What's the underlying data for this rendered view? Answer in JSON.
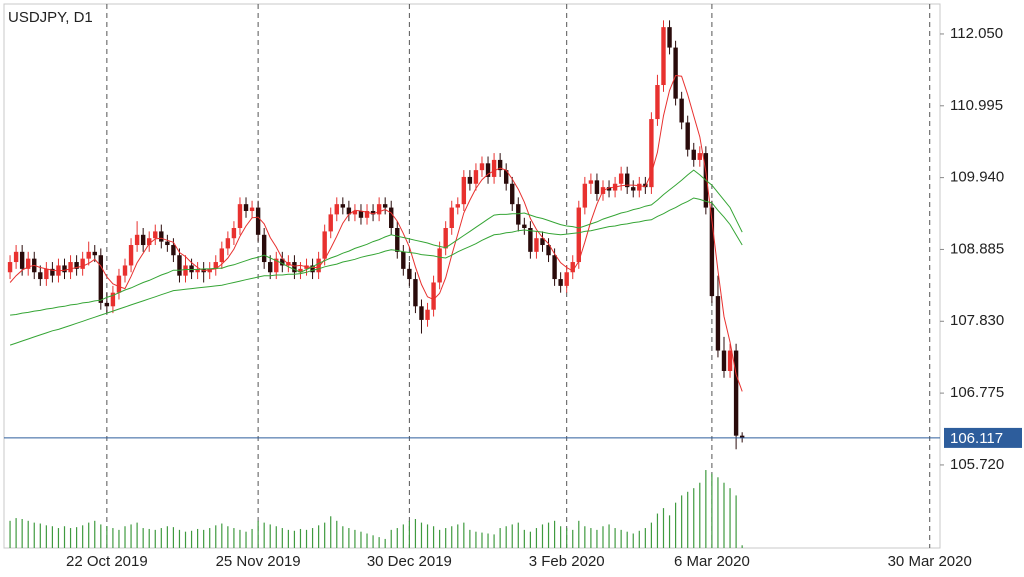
{
  "chart_data": {
    "type": "candlestick",
    "title": "USDJPY, D1",
    "open": [
      108.55,
      108.7,
      108.85,
      108.6,
      108.75,
      108.55,
      108.45,
      108.6,
      108.5,
      108.65,
      108.55,
      108.7,
      108.6,
      108.75,
      108.85,
      108.8,
      108.1,
      108.05,
      108.25,
      108.5,
      108.65,
      108.95,
      109.1,
      108.95,
      109.05,
      109.15,
      109.0,
      108.95,
      108.8,
      108.5,
      108.65,
      108.55,
      108.6,
      108.55,
      108.6,
      108.7,
      108.9,
      109.05,
      109.2,
      109.55,
      109.45,
      109.5,
      109.1,
      108.7,
      108.55,
      108.75,
      108.65,
      108.7,
      108.55,
      108.6,
      108.65,
      108.55,
      108.75,
      109.15,
      109.4,
      109.55,
      109.5,
      109.4,
      109.45,
      109.35,
      109.45,
      109.4,
      109.55,
      109.5,
      109.2,
      108.85,
      108.6,
      108.45,
      108.05,
      107.85,
      108.0,
      108.4,
      108.9,
      109.2,
      109.5,
      109.55,
      109.95,
      109.85,
      110.05,
      110.15,
      109.95,
      110.2,
      110.05,
      109.85,
      109.55,
      109.25,
      109.2,
      108.85,
      109.05,
      108.95,
      108.8,
      108.45,
      108.35,
      108.55,
      108.7,
      109.5,
      109.85,
      109.9,
      109.7,
      109.8,
      109.75,
      109.85,
      110.0,
      109.8,
      109.75,
      109.85,
      109.8,
      110.8,
      111.3,
      112.15,
      111.85,
      111.1,
      110.75,
      110.35,
      110.2,
      110.3,
      109.5,
      108.2,
      107.4,
      107.1,
      107.4,
      106.15
    ],
    "high": [
      108.8,
      108.95,
      108.95,
      108.85,
      108.85,
      108.65,
      108.7,
      108.7,
      108.75,
      108.75,
      108.8,
      108.8,
      108.85,
      109.0,
      108.95,
      108.9,
      108.25,
      108.35,
      108.6,
      108.75,
      109.05,
      109.3,
      109.2,
      109.15,
      109.25,
      109.25,
      109.1,
      109.05,
      108.9,
      108.8,
      108.75,
      108.7,
      108.7,
      108.7,
      108.8,
      109.0,
      109.15,
      109.3,
      109.65,
      109.65,
      109.6,
      109.6,
      109.2,
      108.8,
      108.85,
      108.85,
      108.8,
      108.8,
      108.7,
      108.75,
      108.75,
      108.85,
      109.25,
      109.5,
      109.65,
      109.65,
      109.6,
      109.55,
      109.55,
      109.55,
      109.55,
      109.65,
      109.65,
      109.6,
      109.3,
      108.95,
      108.7,
      108.55,
      108.15,
      108.1,
      108.5,
      109.0,
      109.3,
      109.6,
      109.65,
      110.05,
      110.05,
      110.15,
      110.25,
      110.25,
      110.3,
      110.3,
      110.15,
      109.95,
      109.65,
      109.35,
      109.3,
      109.15,
      109.15,
      109.05,
      108.9,
      108.55,
      108.65,
      108.8,
      109.6,
      109.95,
      110.0,
      110.0,
      109.9,
      109.9,
      109.95,
      110.1,
      110.1,
      109.9,
      109.95,
      109.95,
      110.9,
      111.45,
      112.25,
      112.25,
      111.95,
      111.2,
      110.85,
      110.45,
      110.4,
      110.4,
      109.6,
      108.5,
      107.6,
      107.5,
      107.5,
      106.2
    ],
    "low": [
      108.45,
      108.6,
      108.5,
      108.5,
      108.45,
      108.35,
      108.35,
      108.4,
      108.4,
      108.45,
      108.45,
      108.5,
      108.5,
      108.65,
      108.7,
      108.0,
      107.95,
      107.95,
      108.15,
      108.4,
      108.55,
      108.85,
      108.85,
      108.85,
      108.95,
      108.9,
      108.85,
      108.7,
      108.4,
      108.4,
      108.45,
      108.45,
      108.4,
      108.45,
      108.5,
      108.6,
      108.8,
      108.95,
      109.1,
      109.35,
      109.35,
      109.0,
      108.6,
      108.45,
      108.45,
      108.55,
      108.55,
      108.45,
      108.45,
      108.5,
      108.45,
      108.45,
      108.65,
      109.05,
      109.3,
      109.4,
      109.3,
      109.3,
      109.25,
      109.25,
      109.3,
      109.3,
      109.4,
      109.1,
      108.75,
      108.5,
      108.35,
      107.95,
      107.65,
      107.75,
      107.9,
      108.3,
      108.8,
      109.1,
      109.4,
      109.45,
      109.75,
      109.75,
      109.95,
      109.85,
      109.85,
      109.95,
      109.75,
      109.45,
      109.15,
      109.1,
      108.75,
      108.75,
      108.85,
      108.7,
      108.35,
      108.25,
      108.25,
      108.45,
      108.6,
      109.4,
      109.7,
      109.6,
      109.6,
      109.65,
      109.65,
      109.75,
      109.7,
      109.65,
      109.65,
      109.7,
      109.7,
      110.7,
      111.2,
      111.75,
      111.0,
      110.65,
      110.25,
      110.1,
      110.1,
      109.4,
      108.1,
      107.3,
      107.0,
      107.0,
      105.95,
      106.05
    ],
    "close": [
      108.7,
      108.85,
      108.6,
      108.75,
      108.55,
      108.45,
      108.6,
      108.5,
      108.65,
      108.55,
      108.7,
      108.6,
      108.75,
      108.85,
      108.8,
      108.1,
      108.05,
      108.25,
      108.5,
      108.65,
      108.95,
      109.1,
      108.95,
      109.05,
      109.15,
      109.0,
      108.95,
      108.8,
      108.5,
      108.65,
      108.55,
      108.6,
      108.55,
      108.6,
      108.7,
      108.9,
      109.05,
      109.2,
      109.55,
      109.45,
      109.5,
      109.1,
      108.7,
      108.55,
      108.75,
      108.65,
      108.7,
      108.55,
      108.6,
      108.65,
      108.55,
      108.75,
      109.15,
      109.4,
      109.55,
      109.5,
      109.4,
      109.45,
      109.35,
      109.45,
      109.4,
      109.55,
      109.5,
      109.2,
      108.85,
      108.6,
      108.45,
      108.05,
      107.85,
      108.0,
      108.4,
      108.9,
      109.2,
      109.5,
      109.55,
      109.95,
      109.85,
      110.05,
      110.15,
      109.95,
      110.2,
      110.05,
      109.85,
      109.55,
      109.25,
      109.2,
      108.85,
      109.05,
      108.95,
      108.8,
      108.45,
      108.35,
      108.55,
      108.7,
      109.5,
      109.85,
      109.9,
      109.7,
      109.8,
      109.75,
      109.85,
      110.0,
      109.8,
      109.75,
      109.85,
      109.8,
      110.8,
      111.3,
      112.15,
      111.85,
      111.1,
      110.75,
      110.35,
      110.2,
      110.3,
      109.5,
      108.2,
      107.4,
      107.1,
      107.4,
      106.15,
      106.12
    ],
    "volume": [
      30,
      33,
      32,
      30,
      28,
      27,
      25,
      24,
      22,
      24,
      22,
      23,
      25,
      28,
      30,
      26,
      24,
      22,
      20,
      24,
      26,
      28,
      22,
      21,
      20,
      22,
      24,
      23,
      20,
      18,
      19,
      21,
      20,
      22,
      25,
      27,
      24,
      22,
      20,
      18,
      21,
      30,
      28,
      26,
      24,
      22,
      20,
      19,
      21,
      20,
      22,
      25,
      28,
      35,
      30,
      24,
      22,
      20,
      18,
      16,
      14,
      12,
      10,
      20,
      22,
      26,
      30,
      32,
      28,
      26,
      24,
      20,
      22,
      24,
      26,
      28,
      20,
      18,
      17,
      16,
      15,
      22,
      24,
      26,
      28,
      20,
      18,
      22,
      26,
      28,
      30,
      24,
      22,
      20,
      30,
      24,
      22,
      20,
      24,
      26,
      22,
      20,
      18,
      16,
      19,
      22,
      28,
      38,
      44,
      36,
      50,
      58,
      62,
      66,
      72,
      86,
      82,
      78,
      72,
      66,
      58,
      3
    ],
    "up_color": "#e8312f",
    "down_color": "#2a0b0b",
    "volume_color": "#3f9a3f",
    "series": [
      {
        "color": "#e8312f",
        "values": [
          108.4,
          108.5,
          108.58,
          108.63,
          108.65,
          108.62,
          108.6,
          108.58,
          108.57,
          108.58,
          108.6,
          108.62,
          108.64,
          108.68,
          108.74,
          108.64,
          108.48,
          108.38,
          108.34,
          108.31,
          108.49,
          108.69,
          108.83,
          108.97,
          109.04,
          109.05,
          109.02,
          108.99,
          108.84,
          108.78,
          108.69,
          108.62,
          108.57,
          108.59,
          108.6,
          108.67,
          108.76,
          108.89,
          109.08,
          109.23,
          109.35,
          109.36,
          109.26,
          109.06,
          108.92,
          108.75,
          108.67,
          108.64,
          108.65,
          108.63,
          108.62,
          108.62,
          108.74,
          108.9,
          109.08,
          109.27,
          109.4,
          109.46,
          109.45,
          109.43,
          109.41,
          109.44,
          109.47,
          109.42,
          109.3,
          109.12,
          108.92,
          108.63,
          108.37,
          108.19,
          108.15,
          108.24,
          108.47,
          108.8,
          109.11,
          109.42,
          109.61,
          109.78,
          109.91,
          109.99,
          110.04,
          110.08,
          110.05,
          109.92,
          109.77,
          109.58,
          109.34,
          109.18,
          109.06,
          108.97,
          108.82,
          108.69,
          108.62,
          108.57,
          108.71,
          108.99,
          109.3,
          109.55,
          109.75,
          109.79,
          109.8,
          109.82,
          109.83,
          109.83,
          109.82,
          109.81,
          110.0,
          110.31,
          110.85,
          111.22,
          111.44,
          111.43,
          111.16,
          110.85,
          110.54,
          110.03,
          109.31,
          108.58,
          107.9,
          107.52,
          107.05,
          106.8
        ]
      },
      {
        "color": "#35a535",
        "values": [
          107.92,
          107.93,
          107.95,
          107.96,
          107.98,
          107.99,
          108.01,
          108.02,
          108.04,
          108.05,
          108.07,
          108.08,
          108.1,
          108.11,
          108.13,
          108.14,
          108.18,
          108.21,
          108.25,
          108.29,
          108.32,
          108.36,
          108.4,
          108.43,
          108.47,
          108.51,
          108.54,
          108.58,
          108.58,
          108.59,
          108.59,
          108.59,
          108.6,
          108.6,
          108.61,
          108.61,
          108.64,
          108.66,
          108.69,
          108.72,
          108.75,
          108.77,
          108.8,
          108.76,
          108.72,
          108.68,
          108.63,
          108.59,
          108.55,
          108.59,
          108.63,
          108.68,
          108.72,
          108.76,
          108.79,
          108.83,
          108.86,
          108.9,
          108.93,
          108.96,
          109.0,
          109.03,
          109.07,
          109.1,
          109.08,
          109.06,
          109.04,
          109.02,
          109.0,
          108.98,
          108.95,
          108.93,
          108.91,
          108.97,
          109.03,
          109.09,
          109.15,
          109.21,
          109.27,
          109.33,
          109.39,
          109.4,
          109.4,
          109.41,
          109.41,
          109.42,
          109.39,
          109.36,
          109.34,
          109.31,
          109.28,
          109.25,
          109.23,
          109.22,
          109.2,
          109.23,
          109.26,
          109.29,
          109.33,
          109.36,
          109.39,
          109.42,
          109.44,
          109.47,
          109.49,
          109.52,
          109.54,
          109.61,
          109.69,
          109.76,
          109.83,
          109.9,
          109.98,
          110.05,
          109.98,
          109.9,
          109.83,
          109.72,
          109.61,
          109.5,
          109.32,
          109.14
        ]
      },
      {
        "color": "#35a535",
        "values": [
          107.48,
          107.51,
          107.54,
          107.57,
          107.6,
          107.63,
          107.66,
          107.69,
          107.71,
          107.74,
          107.77,
          107.8,
          107.83,
          107.86,
          107.89,
          107.92,
          107.95,
          107.98,
          108.01,
          108.04,
          108.07,
          108.1,
          108.13,
          108.16,
          108.19,
          108.22,
          108.25,
          108.28,
          108.29,
          108.3,
          108.31,
          108.32,
          108.33,
          108.34,
          108.35,
          108.36,
          108.38,
          108.4,
          108.42,
          108.44,
          108.46,
          108.48,
          108.5,
          108.5,
          108.51,
          108.51,
          108.52,
          108.52,
          108.53,
          108.55,
          108.58,
          108.6,
          108.63,
          108.65,
          108.67,
          108.7,
          108.72,
          108.74,
          108.77,
          108.79,
          108.81,
          108.83,
          108.86,
          108.88,
          108.87,
          108.85,
          108.84,
          108.83,
          108.81,
          108.8,
          108.79,
          108.77,
          108.76,
          108.8,
          108.85,
          108.89,
          108.93,
          108.97,
          109.02,
          109.06,
          109.1,
          109.11,
          109.13,
          109.14,
          109.16,
          109.17,
          109.16,
          109.15,
          109.14,
          109.12,
          109.11,
          109.1,
          109.11,
          109.12,
          109.13,
          109.15,
          109.16,
          109.18,
          109.2,
          109.22,
          109.23,
          109.25,
          109.26,
          109.28,
          109.29,
          109.31,
          109.32,
          109.37,
          109.41,
          109.46,
          109.5,
          109.55,
          109.59,
          109.64,
          109.62,
          109.59,
          109.57,
          109.46,
          109.36,
          109.25,
          109.1,
          108.95
        ]
      }
    ],
    "last_price": 106.117,
    "last_price_color": "#2d5d9c",
    "ylim": [
      104.5,
      112.49
    ],
    "yticks": [
      {
        "value": 112.05,
        "label": "112.050"
      },
      110.995,
      {
        "value": 109.94,
        "label": "109.940"
      },
      108.885,
      {
        "value": 107.83,
        "label": "107.830"
      },
      106.775,
      {
        "value": 105.72,
        "label": "105.720"
      }
    ],
    "xlim": [
      -1,
      153.7
    ],
    "xticks": [
      {
        "value": 16,
        "label": "22 Oct 2019"
      },
      {
        "value": 41,
        "label": "25 Nov 2019"
      },
      {
        "value": 66,
        "label": "30 Dec 2019"
      },
      {
        "value": 92,
        "label": "3 Feb 2020"
      },
      {
        "value": 116,
        "label": "6 Mar 2020"
      },
      {
        "value": 152,
        "label": "30 Mar 2020"
      }
    ],
    "vlim": [
      0,
      600
    ],
    "grid": true
  }
}
